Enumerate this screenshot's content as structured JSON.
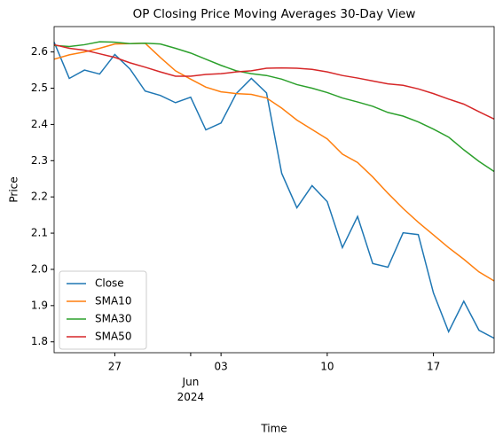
{
  "chart_data": {
    "type": "line",
    "title": "OP Closing Price Moving Averages 30-Day View",
    "x_label": "Time",
    "y_label": "Price",
    "x": [
      "2024-05-23",
      "2024-05-24",
      "2024-05-25",
      "2024-05-26",
      "2024-05-27",
      "2024-05-28",
      "2024-05-29",
      "2024-05-30",
      "2024-05-31",
      "2024-06-01",
      "2024-06-02",
      "2024-06-03",
      "2024-06-04",
      "2024-06-05",
      "2024-06-06",
      "2024-06-07",
      "2024-06-08",
      "2024-06-09",
      "2024-06-10",
      "2024-06-11",
      "2024-06-12",
      "2024-06-13",
      "2024-06-14",
      "2024-06-15",
      "2024-06-16",
      "2024-06-17",
      "2024-06-18",
      "2024-06-19",
      "2024-06-20",
      "2024-06-21"
    ],
    "series": [
      {
        "name": "Close",
        "color": "#1f77b4",
        "values": [
          2.627,
          2.527,
          2.55,
          2.539,
          2.593,
          2.553,
          2.492,
          2.48,
          2.46,
          2.475,
          2.385,
          2.404,
          2.485,
          2.527,
          2.487,
          2.265,
          2.17,
          2.231,
          2.187,
          2.06,
          2.146,
          2.016,
          2.006,
          2.101,
          2.096,
          1.935,
          1.828,
          1.912,
          1.832,
          1.81
        ]
      },
      {
        "name": "SMA10",
        "color": "#ff7f0e",
        "values": [
          2.58,
          2.592,
          2.6,
          2.61,
          2.622,
          2.623,
          2.624,
          2.585,
          2.548,
          2.525,
          2.503,
          2.49,
          2.485,
          2.483,
          2.473,
          2.445,
          2.412,
          2.386,
          2.36,
          2.318,
          2.295,
          2.255,
          2.21,
          2.168,
          2.13,
          2.095,
          2.06,
          2.028,
          1.993,
          1.968
        ]
      },
      {
        "name": "SMA30",
        "color": "#2ca02c",
        "values": [
          2.618,
          2.615,
          2.62,
          2.628,
          2.627,
          2.623,
          2.624,
          2.622,
          2.61,
          2.597,
          2.58,
          2.563,
          2.548,
          2.54,
          2.535,
          2.525,
          2.51,
          2.5,
          2.488,
          2.473,
          2.462,
          2.45,
          2.433,
          2.423,
          2.407,
          2.387,
          2.365,
          2.33,
          2.298,
          2.27
        ]
      },
      {
        "name": "SMA50",
        "color": "#d62728",
        "values": [
          2.62,
          2.61,
          2.605,
          2.595,
          2.585,
          2.57,
          2.558,
          2.545,
          2.533,
          2.533,
          2.538,
          2.54,
          2.545,
          2.548,
          2.555,
          2.556,
          2.555,
          2.552,
          2.545,
          2.535,
          2.528,
          2.52,
          2.512,
          2.508,
          2.498,
          2.485,
          2.47,
          2.456,
          2.435,
          2.415
        ]
      }
    ],
    "xlim": [
      "2024-05-23",
      "2024-06-21"
    ],
    "xticks": [
      {
        "value": "2024-05-27",
        "label": "27"
      },
      {
        "value": "2024-06-01",
        "label": "Jun 2024"
      },
      {
        "value": "2024-06-03",
        "label": "03"
      },
      {
        "value": "2024-06-10",
        "label": "10"
      },
      {
        "value": "2024-06-17",
        "label": "17"
      }
    ],
    "ylim": [
      1.77,
      2.67
    ],
    "yticks": [
      1.8,
      1.9,
      {
        "value": 2,
        "label": "2.0"
      },
      2.1,
      2.2,
      2.3,
      2.4,
      2.5,
      2.6
    ],
    "grid": false,
    "legend": "lower left"
  }
}
